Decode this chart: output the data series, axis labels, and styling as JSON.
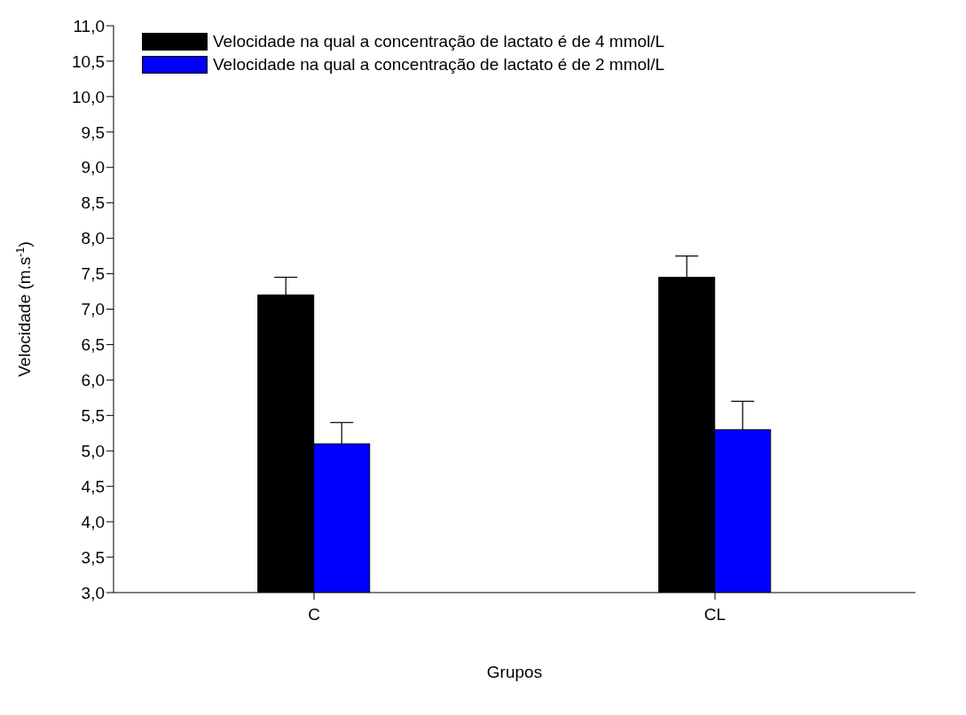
{
  "chart_data": {
    "type": "bar",
    "xlabel": "Grupos",
    "ylabel": "Velocidade (m.s$^{-1}$)",
    "categories": [
      "C",
      "CL"
    ],
    "series": [
      {
        "name": "Velocidade na qual a concentração de lactato é de 4 mmol/L",
        "color": "#000000",
        "values": [
          7.2,
          7.45
        ],
        "errors": [
          [
            7.2,
            7.45
          ],
          [
            7.45,
            7.75
          ]
        ]
      },
      {
        "name": "Velocidade na qual a concentração de lactato é de 2 mmol/L",
        "color": "#0000ff",
        "values": [
          5.1,
          5.3
        ],
        "errors": [
          [
            5.1,
            5.4
          ],
          [
            5.3,
            5.7
          ]
        ]
      }
    ],
    "ylim": [
      3,
      11
    ],
    "yticks": [
      {
        "value": 3,
        "label": "3,0"
      },
      {
        "value": 3.5,
        "label": "3,5"
      },
      {
        "value": 4,
        "label": "4,0"
      },
      {
        "value": 4.5,
        "label": "4,5"
      },
      {
        "value": 5,
        "label": "5,0"
      },
      {
        "value": 5.5,
        "label": "5,5"
      },
      {
        "value": 6,
        "label": "6,0"
      },
      {
        "value": 6.5,
        "label": "6,5"
      },
      {
        "value": 7,
        "label": "7,0"
      },
      {
        "value": 7.5,
        "label": "7,5"
      },
      {
        "value": 8,
        "label": "8,0"
      },
      {
        "value": 8.5,
        "label": "8,5"
      },
      {
        "value": 9,
        "label": "9,0"
      },
      {
        "value": 9.5,
        "label": "9,5"
      },
      {
        "value": 10,
        "label": "10,0"
      },
      {
        "value": 10.5,
        "label": "10,5"
      },
      {
        "value": 11,
        "label": "11,0"
      }
    ],
    "legend": "top left",
    "grid": false
  }
}
